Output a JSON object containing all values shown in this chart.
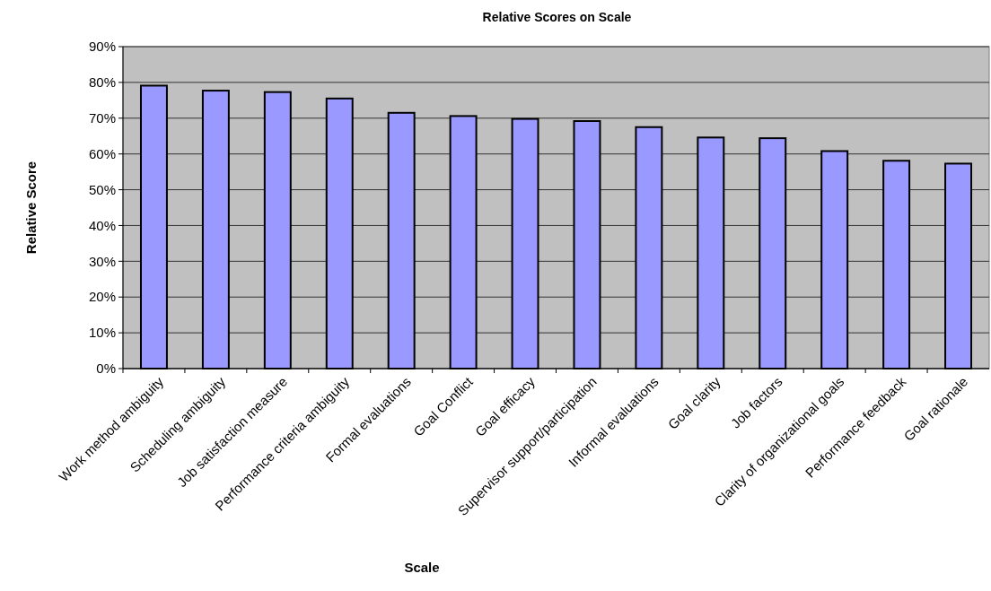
{
  "chart_data": {
    "type": "bar",
    "title": "Relative Scores on Scale",
    "xlabel": "Scale",
    "ylabel": "Relative Score",
    "categories": [
      "Work method ambiguity",
      "Scheduling ambiguity",
      "Job satisfaction measure",
      "Performance criteria ambiguity",
      "Formal evaluations",
      "Goal Conflict",
      "Goal efficacy",
      "Supervisor support/participation",
      "Informal evaluations",
      "Goal clarity",
      "Job factors",
      "Clarity of organizational goals",
      "Performance feedback",
      "Goal rationale"
    ],
    "values": [
      79.1,
      77.7,
      77.3,
      75.5,
      71.5,
      70.6,
      69.8,
      69.2,
      67.5,
      64.6,
      64.4,
      60.8,
      58.1,
      57.3
    ],
    "color": "#9999ff",
    "ylim": [
      0,
      90
    ],
    "yticks": [
      {
        "value": 0,
        "label": "0%"
      },
      {
        "value": 10,
        "label": "10%"
      },
      {
        "value": 20,
        "label": "20%"
      },
      {
        "value": 30,
        "label": "30%"
      },
      {
        "value": 40,
        "label": "40%"
      },
      {
        "value": 50,
        "label": "50%"
      },
      {
        "value": 60,
        "label": "60%"
      },
      {
        "value": 70,
        "label": "70%"
      },
      {
        "value": 80,
        "label": "80%"
      },
      {
        "value": 90,
        "label": "90%"
      }
    ],
    "grid": "y"
  }
}
